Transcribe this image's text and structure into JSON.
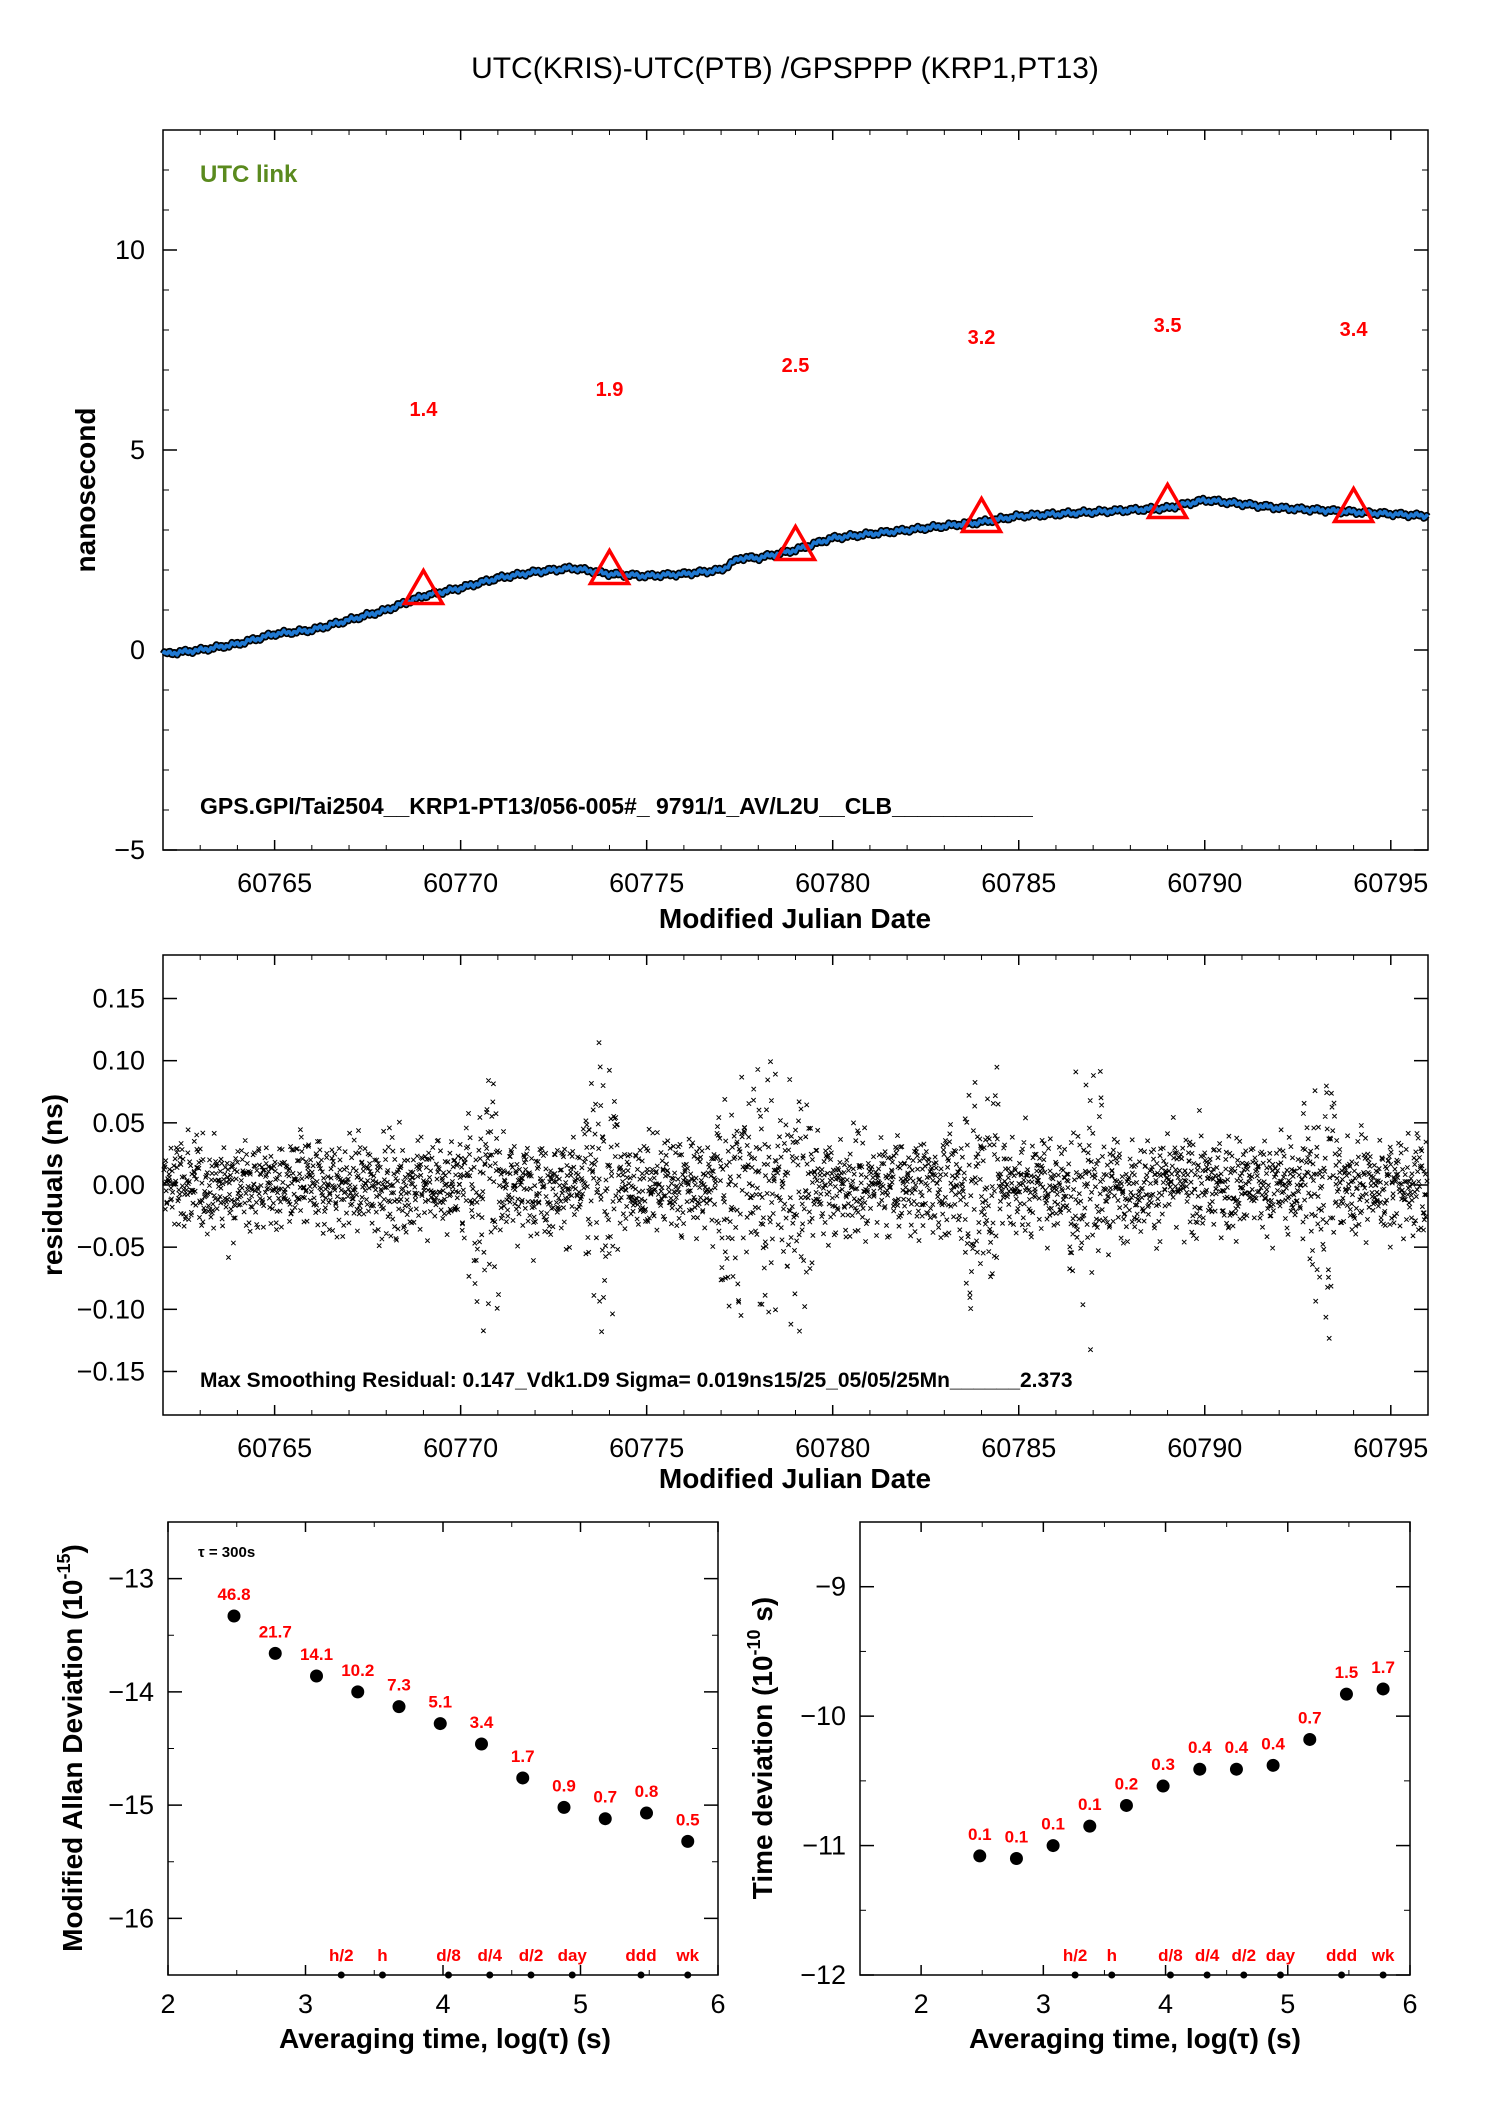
{
  "title": "UTC(KRIS)-UTC(PTB)  /GPSPPP  (KRP1,PT13)",
  "colors": {
    "series": "#1f78d1",
    "triangle": "#ff0000",
    "link": "#5a8a1e"
  },
  "chart_data": [
    {
      "type": "line",
      "panel": "top",
      "link_label": "UTC link",
      "xlabel": "Modified Julian Date",
      "ylabel": "nanosecond",
      "xlim": [
        60762,
        60796
      ],
      "ylim": [
        -5,
        13
      ],
      "xticks": [
        "60765",
        "60770",
        "60775",
        "60780",
        "60785",
        "60790",
        "60795"
      ],
      "yticks": [
        "−5",
        "0",
        "5",
        "10"
      ],
      "series": [
        {
          "x": [
            60762,
            60763,
            60764,
            60765,
            60766,
            60767,
            60768,
            60769,
            60770,
            60771,
            60772,
            60773,
            60774,
            60775,
            60776,
            60777,
            60777.5,
            60778,
            60779,
            60780,
            60781,
            60782,
            60783,
            60784,
            60785,
            60786,
            60787,
            60788,
            60789,
            60790,
            60791,
            60792,
            60793,
            60794,
            60795,
            60796
          ],
          "y": [
            -0.1,
            0.0,
            0.15,
            0.4,
            0.5,
            0.75,
            1.0,
            1.35,
            1.55,
            1.8,
            1.95,
            2.05,
            1.9,
            1.85,
            1.9,
            2.0,
            2.3,
            2.3,
            2.5,
            2.8,
            2.9,
            3.0,
            3.1,
            3.2,
            3.35,
            3.4,
            3.45,
            3.5,
            3.55,
            3.75,
            3.65,
            3.55,
            3.5,
            3.45,
            3.4,
            3.35
          ]
        }
      ],
      "markers": {
        "x": [
          60769,
          60774,
          60779,
          60784,
          60789,
          60794
        ],
        "y": [
          1.5,
          2.0,
          2.6,
          3.3,
          3.65,
          3.55
        ],
        "labels": [
          "1.4",
          "1.9",
          "2.5",
          "3.2",
          "3.5",
          "3.4"
        ]
      },
      "footer": "GPS.GPI/Tai2504__KRP1-PT13/056-005#_  9791/1_AV/L2U__CLB___________"
    },
    {
      "type": "scatter",
      "panel": "middle",
      "xlabel": "Modified Julian Date",
      "ylabel": "residuals (ns)",
      "xlim": [
        60762,
        60796
      ],
      "ylim": [
        -0.185,
        0.185
      ],
      "xticks": [
        "60765",
        "60770",
        "60775",
        "60780",
        "60785",
        "60790",
        "60795"
      ],
      "yticks": [
        "−0.15",
        "−0.10",
        "−0.05",
        "0.00",
        "0.05",
        "0.10",
        "0.15"
      ],
      "sigma_ns": 0.019,
      "footer": "Max Smoothing Residual: 0.147_Vdk1.D9  Sigma= 0.019ns15/25_05/05/25Mn______2.373"
    },
    {
      "type": "scatter",
      "panel": "bottom-left",
      "tau_label": "τ = 300s",
      "xlabel": "Averaging time, log(τ) (s)",
      "ylabel": "Modified Allan Deviation (10",
      "ylabel_exp": "-15",
      "ylabel_end": ")",
      "xlim": [
        2,
        6
      ],
      "ylim": [
        -16.5,
        -12.5
      ],
      "xticks": [
        "2",
        "3",
        "4",
        "5",
        "6"
      ],
      "yticks": [
        "−16",
        "−15",
        "−14",
        "−13"
      ],
      "x": [
        2.48,
        2.78,
        3.08,
        3.38,
        3.68,
        3.98,
        4.28,
        4.58,
        4.88,
        5.18,
        5.48,
        5.78
      ],
      "y": [
        -13.33,
        -13.66,
        -13.86,
        -14.0,
        -14.13,
        -14.28,
        -14.46,
        -14.76,
        -15.02,
        -15.12,
        -15.07,
        -15.32
      ],
      "labels": [
        "46.8",
        "21.7",
        "14.1",
        "10.2",
        "7.3",
        "5.1",
        "3.4",
        "1.7",
        "0.9",
        "0.7",
        "0.8",
        "0.5"
      ],
      "time_marks": {
        "x": [
          3.26,
          3.56,
          4.04,
          4.34,
          4.64,
          4.94,
          5.44,
          5.78
        ],
        "labels": [
          "h/2",
          "h",
          "d/8",
          "d/4",
          "d/2",
          "day",
          "ddd",
          "wk"
        ]
      }
    },
    {
      "type": "scatter",
      "panel": "bottom-right",
      "xlabel": "Averaging time, log(τ) (s)",
      "ylabel": "Time deviation (10",
      "ylabel_exp": "-10",
      "ylabel_end": " s)",
      "xlim": [
        1.5,
        6
      ],
      "ylim": [
        -12,
        -8.5
      ],
      "xticks": [
        "2",
        "3",
        "4",
        "5",
        "6"
      ],
      "yticks": [
        "−12",
        "−11",
        "−10",
        "−9"
      ],
      "x": [
        2.48,
        2.78,
        3.08,
        3.38,
        3.68,
        3.98,
        4.28,
        4.58,
        4.88,
        5.18,
        5.48,
        5.78
      ],
      "y": [
        -11.08,
        -11.1,
        -11.0,
        -10.85,
        -10.69,
        -10.54,
        -10.41,
        -10.41,
        -10.38,
        -10.18,
        -9.83,
        -9.79
      ],
      "labels": [
        "0.1",
        "0.1",
        "0.1",
        "0.1",
        "0.2",
        "0.3",
        "0.4",
        "0.4",
        "0.4",
        "0.7",
        "1.5",
        "1.7"
      ],
      "time_marks": {
        "x": [
          3.26,
          3.56,
          4.04,
          4.34,
          4.64,
          4.94,
          5.44,
          5.78
        ],
        "labels": [
          "h/2",
          "h",
          "d/8",
          "d/4",
          "d/2",
          "day",
          "ddd",
          "wk"
        ]
      }
    }
  ]
}
